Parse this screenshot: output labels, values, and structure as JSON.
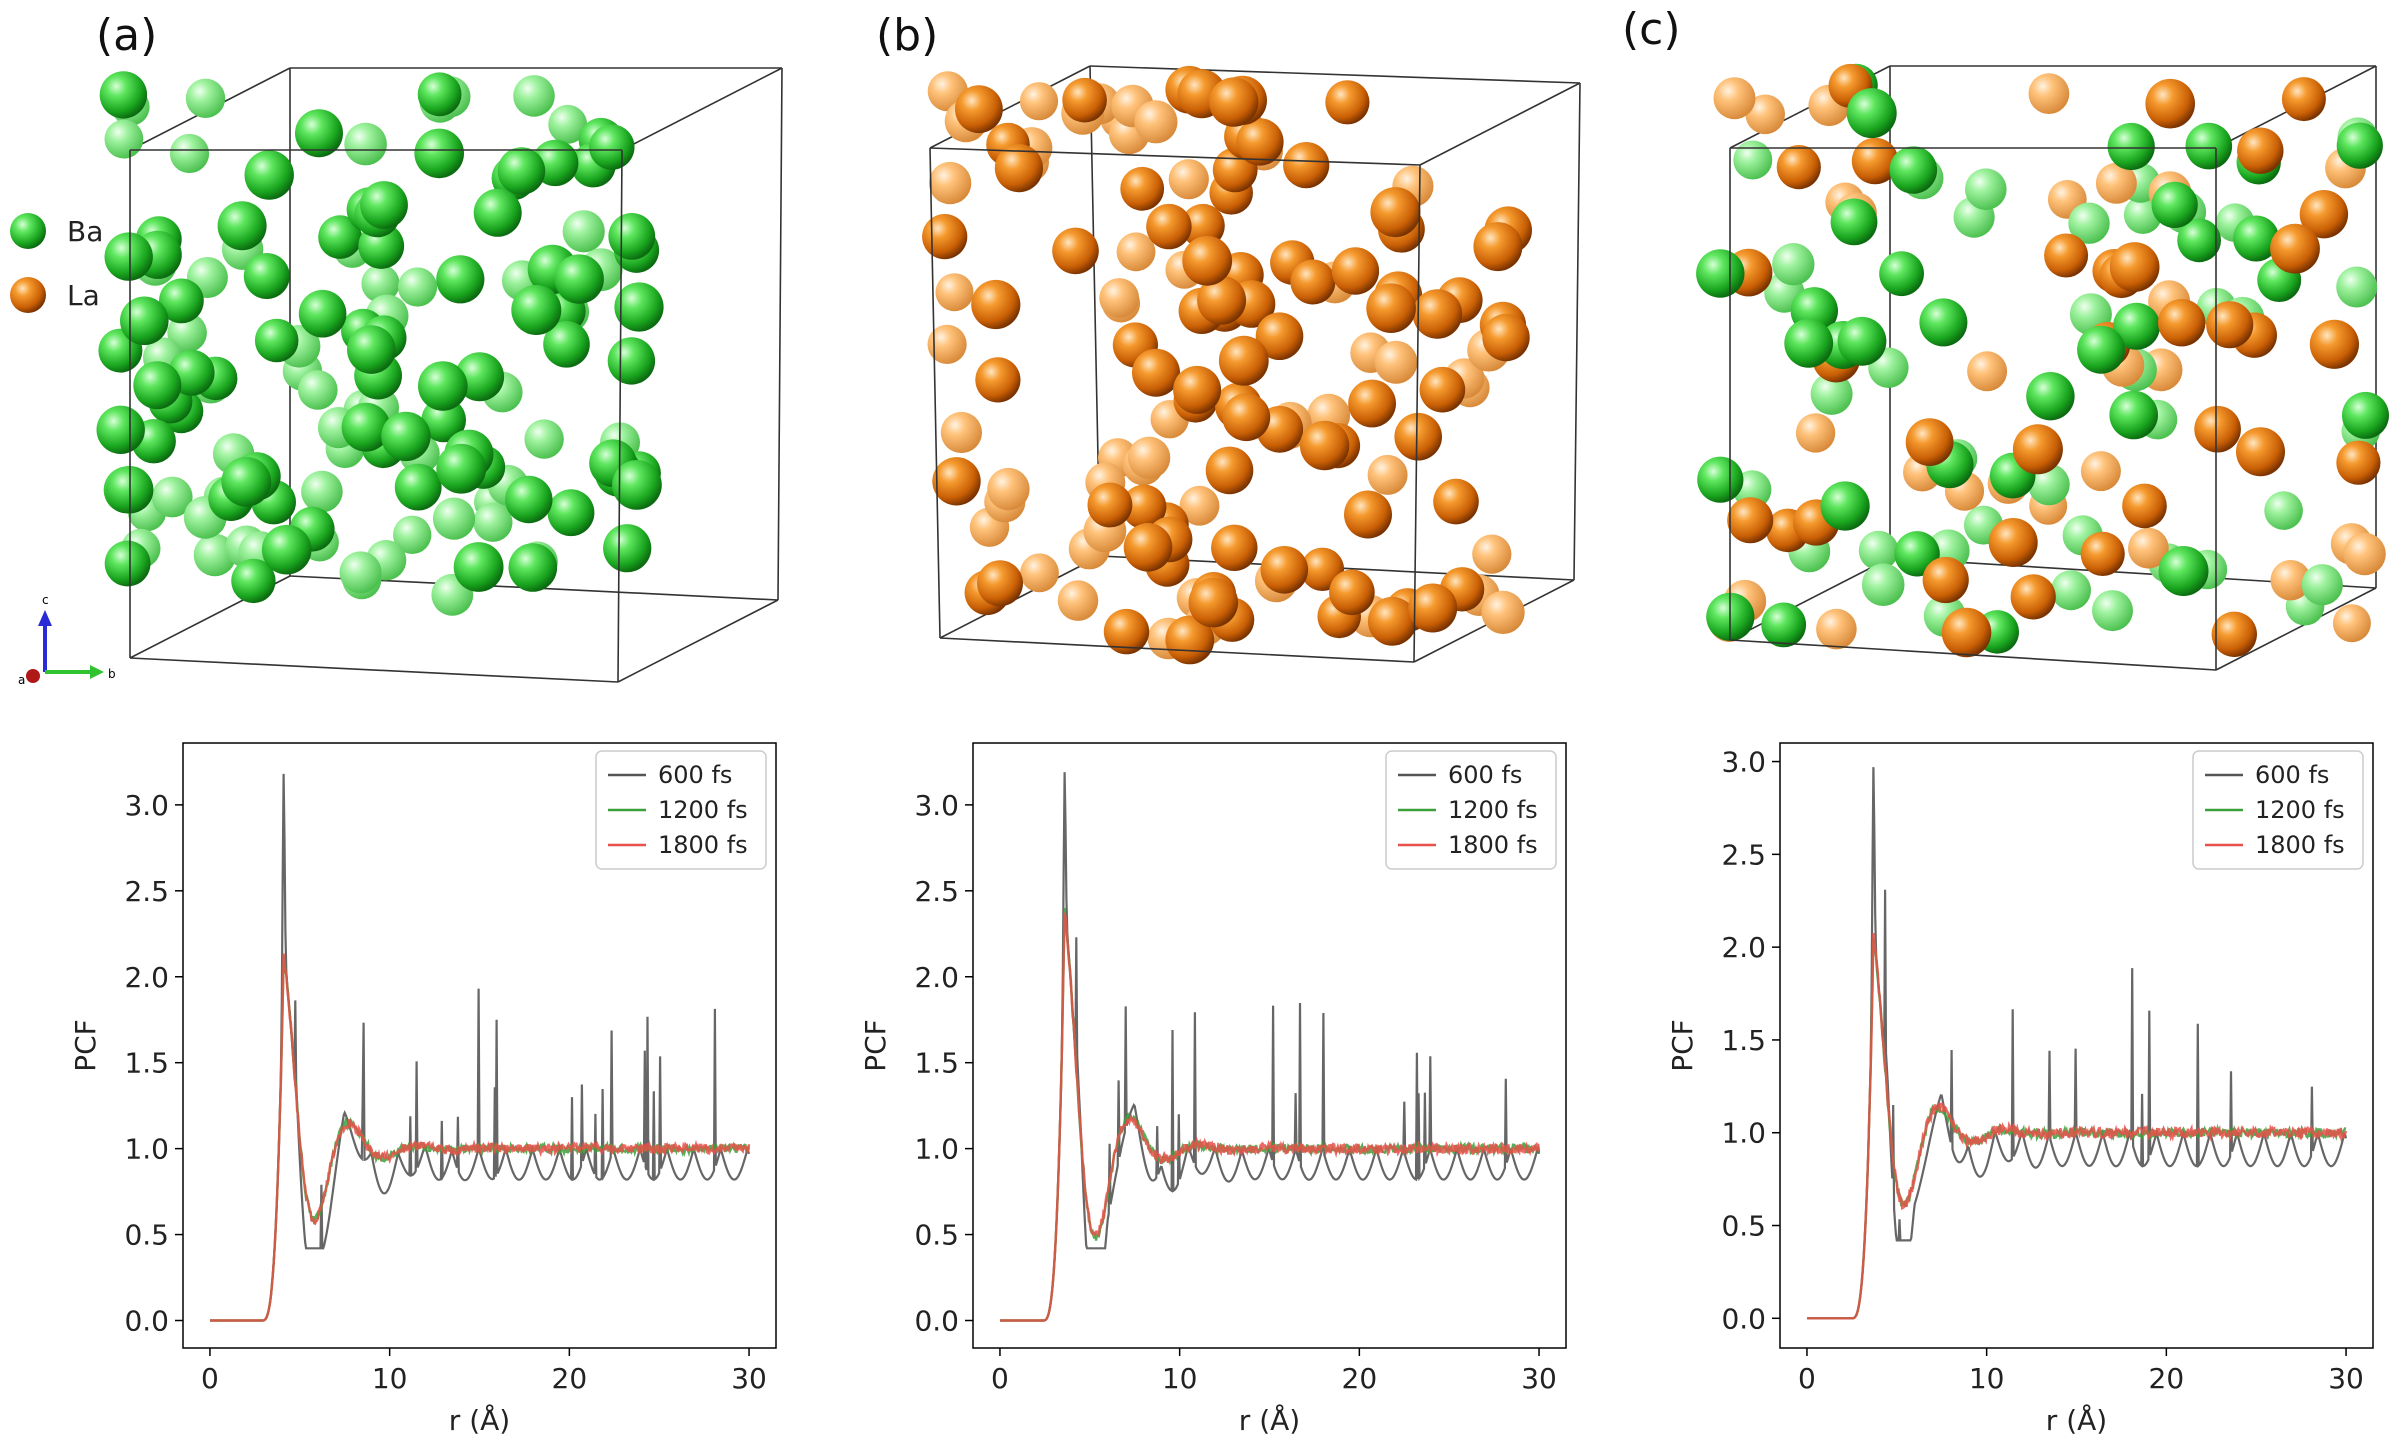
{
  "colors": {
    "ba": "#22c42c",
    "ba_light": "#8cf08f",
    "la": "#e07810",
    "la_light": "#ffc078",
    "line_600": "#555555",
    "line_1200": "#3aa03a",
    "line_1800": "#e8504a"
  },
  "species_key": [
    {
      "label": "Ba",
      "color": "#22c42c"
    },
    {
      "label": "La",
      "color": "#e07810"
    }
  ],
  "axis_triad": {
    "c": "c",
    "a": "a",
    "b": "b"
  },
  "panels": [
    {
      "label": "(a)",
      "atoms": "Ba"
    },
    {
      "label": "(b)",
      "atoms": "La"
    },
    {
      "label": "(c)",
      "atoms": "Ba+La"
    }
  ],
  "chart_data": [
    {
      "type": "line",
      "panel": "(a)",
      "xlabel": "r (Å)",
      "ylabel": "PCF",
      "xlim": [
        -1.5,
        31.5
      ],
      "ylim": [
        -0.16,
        3.36
      ],
      "xticks": [
        0,
        10,
        20,
        30
      ],
      "yticks": [
        0.0,
        0.5,
        1.0,
        1.5,
        2.0,
        2.5,
        3.0
      ],
      "legend": "top-right",
      "peak_r": 4.1,
      "peak_600": 3.18,
      "peak_avg": 2.12,
      "series": [
        {
          "name": "600 fs",
          "color": "#555555"
        },
        {
          "name": "1200 fs",
          "color": "#3aa03a"
        },
        {
          "name": "1800 fs",
          "color": "#e8504a"
        }
      ]
    },
    {
      "type": "line",
      "panel": "(b)",
      "xlabel": "r (Å)",
      "ylabel": "PCF",
      "xlim": [
        -1.5,
        31.5
      ],
      "ylim": [
        -0.16,
        3.36
      ],
      "xticks": [
        0,
        10,
        20,
        30
      ],
      "yticks": [
        0.0,
        0.5,
        1.0,
        1.5,
        2.0,
        2.5,
        3.0
      ],
      "legend": "top-right",
      "peak_r": 3.6,
      "peak_600": 3.19,
      "peak_avg": 2.38,
      "series": [
        {
          "name": "600 fs",
          "color": "#555555"
        },
        {
          "name": "1200 fs",
          "color": "#3aa03a"
        },
        {
          "name": "1800 fs",
          "color": "#e8504a"
        }
      ]
    },
    {
      "type": "line",
      "panel": "(c)",
      "xlabel": "r (Å)",
      "ylabel": "PCF",
      "xlim": [
        -1.5,
        31.5
      ],
      "ylim": [
        -0.16,
        3.1
      ],
      "xticks": [
        0,
        10,
        20,
        30
      ],
      "yticks": [
        0.0,
        0.5,
        1.0,
        1.5,
        2.0,
        2.5,
        3.0
      ],
      "legend": "top-right",
      "peak_r": 3.7,
      "peak_600": 2.97,
      "peak_avg": 2.05,
      "series": [
        {
          "name": "600 fs",
          "color": "#555555"
        },
        {
          "name": "1200 fs",
          "color": "#3aa03a"
        },
        {
          "name": "1800 fs",
          "color": "#e8504a"
        }
      ]
    }
  ]
}
